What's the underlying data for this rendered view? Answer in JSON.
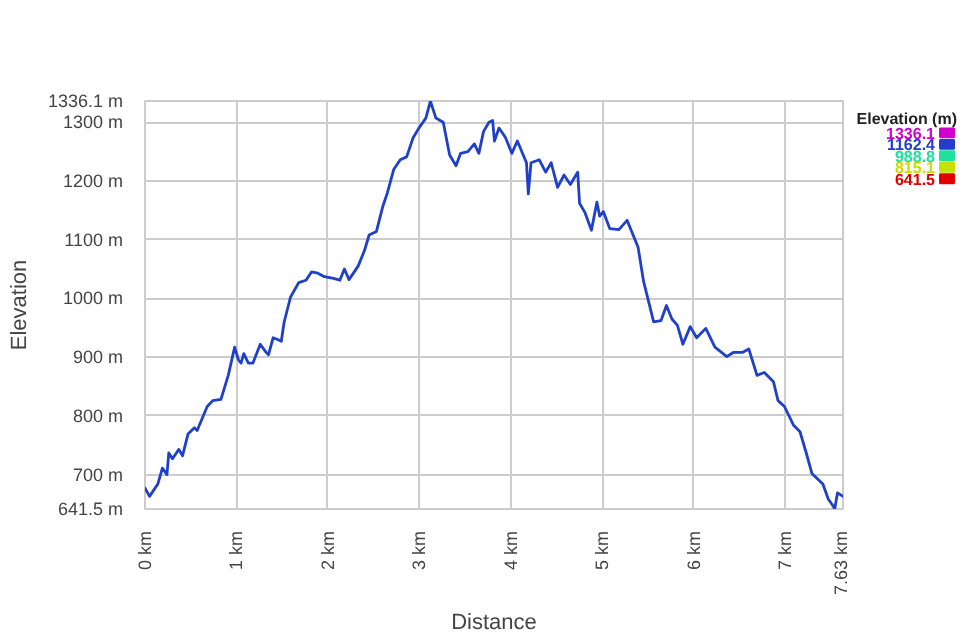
{
  "chart_data": {
    "type": "line",
    "xlabel": "Distance",
    "ylabel": "Elevation",
    "clabel": "Elevation (m)",
    "xlim": [
      0,
      7.63
    ],
    "ylim": [
      641.5,
      1336.1
    ],
    "xticks": [
      {
        "value": 0,
        "label": "0 km"
      },
      {
        "value": 1,
        "label": "1 km"
      },
      {
        "value": 2,
        "label": "2 km"
      },
      {
        "value": 3,
        "label": "3 km"
      },
      {
        "value": 4,
        "label": "4 km"
      },
      {
        "value": 5,
        "label": "5 km"
      },
      {
        "value": 6,
        "label": "6 km"
      },
      {
        "value": 7,
        "label": "7 km"
      },
      {
        "value": 7.63,
        "label": "7.63 km"
      }
    ],
    "yticks": [
      {
        "value": 641.5,
        "label": "641.5 m"
      },
      {
        "value": 700,
        "label": "700 m"
      },
      {
        "value": 800,
        "label": "800 m"
      },
      {
        "value": 900,
        "label": "900 m"
      },
      {
        "value": 1000,
        "label": "1000 m"
      },
      {
        "value": 1100,
        "label": "1100 m"
      },
      {
        "value": 1200,
        "label": "1200 m"
      },
      {
        "value": 1300,
        "label": "1300 m"
      },
      {
        "value": 1336.1,
        "label": "1336.1 m"
      }
    ],
    "clim": [
      641.5,
      1336.1
    ],
    "cticks": [
      1336.1,
      1162.4,
      988.8,
      815.1,
      641.5
    ],
    "color": "#2040c8",
    "grid": true,
    "x": [
      0,
      0.05,
      0.14,
      0.19,
      0.24,
      0.26,
      0.3,
      0.37,
      0.41,
      0.47,
      0.54,
      0.57,
      0.68,
      0.74,
      0.83,
      0.91,
      0.98,
      1.02,
      1.05,
      1.08,
      1.13,
      1.18,
      1.26,
      1.32,
      1.35,
      1.4,
      1.45,
      1.49,
      1.52,
      1.59,
      1.68,
      1.76,
      1.82,
      1.89,
      1.96,
      2.06,
      2.13,
      2.18,
      2.23,
      2.33,
      2.4,
      2.45,
      2.53,
      2.6,
      2.65,
      2.72,
      2.79,
      2.86,
      2.93,
      2.99,
      3.07,
      3.12,
      3.18,
      3.26,
      3.33,
      3.4,
      3.45,
      3.53,
      3.6,
      3.65,
      3.7,
      3.76,
      3.8,
      3.82,
      3.87,
      3.94,
      4.01,
      4.07,
      4.17,
      4.19,
      4.22,
      4.31,
      4.38,
      4.44,
      4.51,
      4.58,
      4.65,
      4.73,
      4.75,
      4.81,
      4.88,
      4.94,
      4.97,
      5.01,
      5.08,
      5.18,
      5.27,
      5.32,
      5.39,
      5.45,
      5.56,
      5.64,
      5.7,
      5.76,
      5.82,
      5.88,
      5.96,
      6.03,
      6.13,
      6.23,
      6.36,
      6.43,
      6.53,
      6.6,
      6.69,
      6.77,
      6.87,
      6.92,
      6.99,
      7.09,
      7.16,
      7.23,
      7.29,
      7.41,
      7.47,
      7.52,
      7.54,
      7.57,
      7.63
    ],
    "values": [
      677,
      663,
      684,
      711,
      700,
      737,
      727,
      743,
      732,
      769,
      780,
      775,
      816,
      826,
      828,
      869,
      917,
      896,
      890,
      906,
      890,
      890,
      922,
      909,
      904,
      933,
      930,
      927,
      959,
      1002,
      1027,
      1031,
      1045,
      1043,
      1037,
      1034,
      1031,
      1050,
      1032,
      1055,
      1082,
      1108,
      1114,
      1157,
      1180,
      1220,
      1236,
      1241,
      1273,
      1289,
      1307,
      1336,
      1307,
      1300,
      1244,
      1226,
      1247,
      1250,
      1263,
      1247,
      1284,
      1300,
      1303,
      1268,
      1290,
      1274,
      1247,
      1268,
      1231,
      1178,
      1231,
      1236,
      1215,
      1231,
      1189,
      1210,
      1194,
      1215,
      1162,
      1146,
      1116,
      1164,
      1140,
      1148,
      1119,
      1117,
      1133,
      1114,
      1087,
      1029,
      960,
      962,
      988,
      965,
      954,
      922,
      952,
      933,
      949,
      917,
      901,
      908,
      908,
      914,
      869,
      874,
      858,
      826,
      816,
      784,
      773,
      736,
      702,
      684,
      658,
      647,
      642,
      669,
      663
    ]
  }
}
